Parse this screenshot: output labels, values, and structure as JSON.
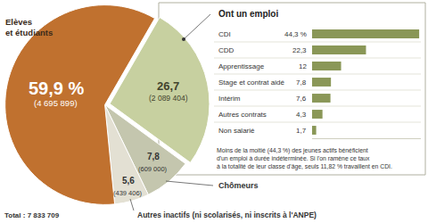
{
  "chart_data": [
    {
      "type": "pie",
      "categories": [
        null,
        "Chômeurs",
        "Autres inactifs (ni scolarisés, ni inscrits à l'ANPE)",
        "Elèves et étudiants"
      ],
      "values": [
        26.7,
        7.8,
        5.6,
        59.9
      ],
      "value_labels": [
        "26,7",
        "7,8",
        "5,6",
        "59,9 %"
      ],
      "counts": [
        2089404,
        609000,
        439406,
        4695899
      ],
      "count_labels": [
        "(2 089 404)",
        "(609 000)",
        "(439 406)",
        "(4 695 899)"
      ],
      "total": 7833709,
      "total_label": "Total : 7 833 709",
      "colors": [
        "#c7d0a0",
        "#c4c6ae",
        "#e3e0d3",
        "#c0712f"
      ],
      "data_labels": true
    },
    {
      "type": "bar",
      "title": "Ont un emploi",
      "orientation": "horizontal",
      "categories": [
        "CDI",
        "CDD",
        "Apprentissage",
        "Stage et contrat aidé",
        "Intérim",
        "Autres contrats",
        "Non salarié"
      ],
      "values": [
        44.3,
        22.3,
        12,
        7.8,
        7.6,
        4.3,
        1.7
      ],
      "value_labels": [
        "44,3 %",
        "22,3",
        "12",
        "7,8",
        "7,6",
        "4,3",
        "1,7"
      ],
      "color": "#8a9757",
      "xlim": [
        0,
        45
      ],
      "xticks": [],
      "grid": false,
      "data_labels": true,
      "tick_labels": "y",
      "note": [
        "Moins de la moitié (44,3 %) des jeunes actifs bénéficient",
        "d'un emploi à durée indéterminée. Si l'on ramène ce taux",
        "à la totalité de leur classe d'âge, seuls 11,82 % travaillent en CDI."
      ]
    }
  ]
}
